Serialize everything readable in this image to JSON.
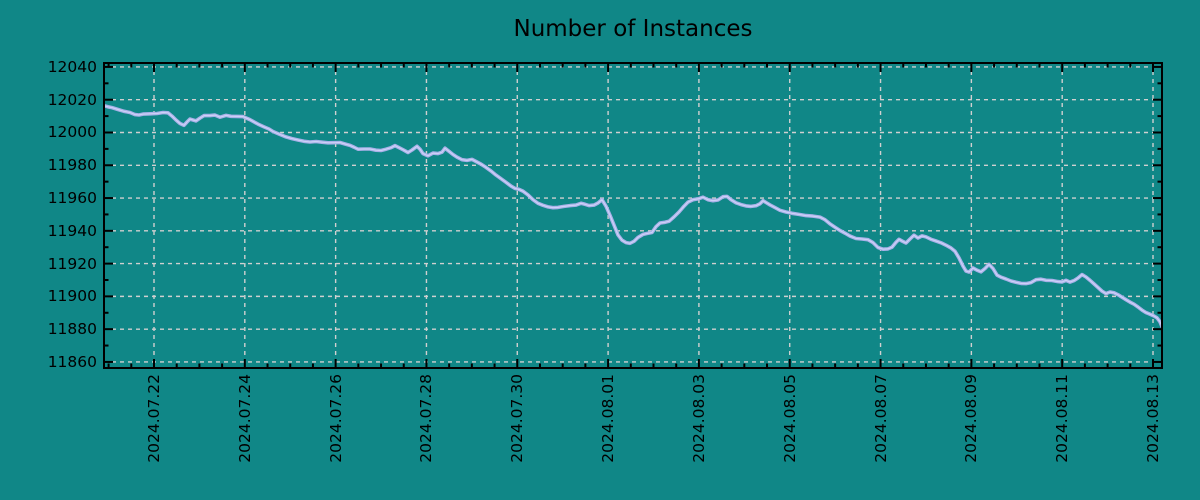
{
  "title": "Number of Instances",
  "colors": {
    "background": "#108787",
    "line": "#a9b1e9",
    "line_core": "#cdd2f6",
    "grid": "#d0d0d0",
    "axis": "#000000",
    "text": "#000000"
  },
  "chart_data": {
    "type": "line",
    "title": "Number of Instances",
    "xlabel": "",
    "ylabel": "",
    "legend": false,
    "grid": true,
    "x_unit": "days since 2024-07-22",
    "xlim": [
      -1.101,
      22.198
    ],
    "ylim": [
      11856.3,
      12042.4
    ],
    "x_tick_values": [
      0,
      2,
      4,
      6,
      8,
      10,
      12,
      14,
      16,
      18,
      20,
      22
    ],
    "x_tick_labels": [
      "2024.07.22",
      "2024.07.24",
      "2024.07.26",
      "2024.07.28",
      "2024.07.30",
      "2024.08.01",
      "2024.08.03",
      "2024.08.05",
      "2024.08.07",
      "2024.08.09",
      "2024.08.11",
      "2024.08.13"
    ],
    "x_minor_step": 0.5,
    "y_tick_values": [
      11860,
      11880,
      11900,
      11920,
      11940,
      11960,
      11980,
      12000,
      12020,
      12040
    ],
    "y_tick_labels": [
      "11860",
      "11880",
      "11900",
      "11920",
      "11940",
      "11960",
      "11980",
      "12000",
      "12020",
      "12040"
    ],
    "y_minor_values": [
      11870,
      11890,
      11910,
      11930,
      11950,
      11970,
      11990,
      12010,
      12030
    ],
    "series": [
      {
        "name": "instances",
        "points": [
          [
            -1.101,
            12016.3
          ],
          [
            -1.013,
            12015.7
          ],
          [
            -0.925,
            12015.2
          ],
          [
            -0.793,
            12014.0
          ],
          [
            -0.661,
            12012.9
          ],
          [
            -0.529,
            12012.2
          ],
          [
            -0.418,
            12010.9
          ],
          [
            -0.33,
            12010.7
          ],
          [
            -0.242,
            12011.2
          ],
          [
            -0.088,
            12011.4
          ],
          [
            0.066,
            12011.6
          ],
          [
            0.198,
            12012.2
          ],
          [
            0.308,
            12012.0
          ],
          [
            0.396,
            12010.0
          ],
          [
            0.484,
            12007.6
          ],
          [
            0.573,
            12005.5
          ],
          [
            0.661,
            12004.4
          ],
          [
            0.727,
            12006.4
          ],
          [
            0.793,
            12008.2
          ],
          [
            0.859,
            12007.6
          ],
          [
            0.925,
            12007.1
          ],
          [
            1.013,
            12008.8
          ],
          [
            1.101,
            12010.3
          ],
          [
            1.233,
            12010.3
          ],
          [
            1.343,
            12010.6
          ],
          [
            1.453,
            12009.3
          ],
          [
            1.586,
            12010.4
          ],
          [
            1.696,
            12009.9
          ],
          [
            1.828,
            12009.8
          ],
          [
            1.96,
            12009.7
          ],
          [
            2.114,
            12007.8
          ],
          [
            2.29,
            12005.1
          ],
          [
            2.422,
            12003.4
          ],
          [
            2.532,
            12002.1
          ],
          [
            2.62,
            12000.6
          ],
          [
            2.775,
            11998.8
          ],
          [
            2.907,
            11997.3
          ],
          [
            3.039,
            11996.3
          ],
          [
            3.171,
            11995.4
          ],
          [
            3.303,
            11994.6
          ],
          [
            3.435,
            11994.2
          ],
          [
            3.567,
            11994.5
          ],
          [
            3.699,
            11994.1
          ],
          [
            3.832,
            11993.7
          ],
          [
            3.964,
            11993.8
          ],
          [
            4.096,
            11993.9
          ],
          [
            4.206,
            11993.0
          ],
          [
            4.316,
            11992.1
          ],
          [
            4.404,
            11991.0
          ],
          [
            4.492,
            11989.8
          ],
          [
            4.624,
            11989.9
          ],
          [
            4.756,
            11989.9
          ],
          [
            4.888,
            11989.2
          ],
          [
            4.999,
            11989.0
          ],
          [
            5.109,
            11989.8
          ],
          [
            5.219,
            11990.7
          ],
          [
            5.307,
            11992.0
          ],
          [
            5.395,
            11990.8
          ],
          [
            5.483,
            11989.5
          ],
          [
            5.593,
            11987.8
          ],
          [
            5.681,
            11989.3
          ],
          [
            5.791,
            11991.6
          ],
          [
            5.857,
            11989.8
          ],
          [
            5.923,
            11987.1
          ],
          [
            6.034,
            11985.8
          ],
          [
            6.144,
            11987.4
          ],
          [
            6.254,
            11987.1
          ],
          [
            6.342,
            11988.0
          ],
          [
            6.408,
            11990.4
          ],
          [
            6.496,
            11988.5
          ],
          [
            6.584,
            11986.6
          ],
          [
            6.672,
            11985.0
          ],
          [
            6.783,
            11983.4
          ],
          [
            6.893,
            11983.0
          ],
          [
            7.003,
            11983.6
          ],
          [
            7.113,
            11982.0
          ],
          [
            7.201,
            11980.7
          ],
          [
            7.311,
            11978.7
          ],
          [
            7.421,
            11976.5
          ],
          [
            7.531,
            11974.0
          ],
          [
            7.641,
            11971.8
          ],
          [
            7.751,
            11969.6
          ],
          [
            7.861,
            11967.3
          ],
          [
            7.949,
            11965.9
          ],
          [
            8.038,
            11965.3
          ],
          [
            8.126,
            11964.2
          ],
          [
            8.236,
            11961.9
          ],
          [
            8.346,
            11959.0
          ],
          [
            8.456,
            11956.8
          ],
          [
            8.566,
            11955.6
          ],
          [
            8.676,
            11954.6
          ],
          [
            8.786,
            11954.1
          ],
          [
            8.896,
            11954.3
          ],
          [
            9.028,
            11954.9
          ],
          [
            9.161,
            11955.4
          ],
          [
            9.293,
            11955.7
          ],
          [
            9.403,
            11956.8
          ],
          [
            9.491,
            11956.2
          ],
          [
            9.579,
            11955.4
          ],
          [
            9.689,
            11955.7
          ],
          [
            9.777,
            11957.0
          ],
          [
            9.865,
            11959.0
          ],
          [
            9.953,
            11955.0
          ],
          [
            10.041,
            11949.5
          ],
          [
            10.129,
            11943.5
          ],
          [
            10.218,
            11937.5
          ],
          [
            10.306,
            11934.3
          ],
          [
            10.394,
            11932.8
          ],
          [
            10.482,
            11932.4
          ],
          [
            10.57,
            11933.6
          ],
          [
            10.658,
            11936.0
          ],
          [
            10.768,
            11937.8
          ],
          [
            10.878,
            11938.5
          ],
          [
            10.966,
            11939.0
          ],
          [
            11.054,
            11942.5
          ],
          [
            11.142,
            11944.8
          ],
          [
            11.253,
            11945.2
          ],
          [
            11.341,
            11945.8
          ],
          [
            11.451,
            11948.5
          ],
          [
            11.561,
            11951.5
          ],
          [
            11.671,
            11955.0
          ],
          [
            11.759,
            11957.5
          ],
          [
            11.869,
            11959.0
          ],
          [
            11.979,
            11959.5
          ],
          [
            12.089,
            11960.5
          ],
          [
            12.199,
            11959.0
          ],
          [
            12.31,
            11958.4
          ],
          [
            12.42,
            11958.8
          ],
          [
            12.53,
            11960.8
          ],
          [
            12.618,
            11961.0
          ],
          [
            12.706,
            11959.0
          ],
          [
            12.816,
            11957.1
          ],
          [
            12.926,
            11956.0
          ],
          [
            13.036,
            11955.2
          ],
          [
            13.146,
            11954.9
          ],
          [
            13.257,
            11955.3
          ],
          [
            13.345,
            11956.5
          ],
          [
            13.411,
            11958.4
          ],
          [
            13.477,
            11957.3
          ],
          [
            13.565,
            11955.8
          ],
          [
            13.675,
            11954.2
          ],
          [
            13.785,
            11952.5
          ],
          [
            13.917,
            11951.5
          ],
          [
            14.049,
            11950.7
          ],
          [
            14.203,
            11950.0
          ],
          [
            14.358,
            11949.3
          ],
          [
            14.512,
            11949.0
          ],
          [
            14.666,
            11948.4
          ],
          [
            14.776,
            11946.8
          ],
          [
            14.886,
            11944.2
          ],
          [
            14.996,
            11942.2
          ],
          [
            15.106,
            11940.2
          ],
          [
            15.216,
            11938.6
          ],
          [
            15.327,
            11936.8
          ],
          [
            15.459,
            11935.3
          ],
          [
            15.591,
            11935.0
          ],
          [
            15.723,
            11934.6
          ],
          [
            15.833,
            11932.8
          ],
          [
            15.943,
            11929.8
          ],
          [
            16.053,
            11928.8
          ],
          [
            16.163,
            11929.0
          ],
          [
            16.252,
            11930.0
          ],
          [
            16.34,
            11933.0
          ],
          [
            16.406,
            11934.8
          ],
          [
            16.472,
            11933.8
          ],
          [
            16.56,
            11932.6
          ],
          [
            16.648,
            11935.0
          ],
          [
            16.736,
            11937.3
          ],
          [
            16.824,
            11935.6
          ],
          [
            16.912,
            11936.9
          ],
          [
            17.001,
            11936.3
          ],
          [
            17.111,
            11934.8
          ],
          [
            17.221,
            11933.8
          ],
          [
            17.331,
            11932.7
          ],
          [
            17.441,
            11931.2
          ],
          [
            17.551,
            11929.5
          ],
          [
            17.639,
            11927.5
          ],
          [
            17.727,
            11923.5
          ],
          [
            17.815,
            11918.5
          ],
          [
            17.881,
            11915.4
          ],
          [
            17.947,
            11914.8
          ],
          [
            18.036,
            11917.3
          ],
          [
            18.124,
            11916.0
          ],
          [
            18.212,
            11915.0
          ],
          [
            18.3,
            11917.0
          ],
          [
            18.388,
            11919.5
          ],
          [
            18.476,
            11917.0
          ],
          [
            18.564,
            11913.0
          ],
          [
            18.652,
            11911.7
          ],
          [
            18.762,
            11910.6
          ],
          [
            18.873,
            11909.4
          ],
          [
            18.983,
            11908.6
          ],
          [
            19.093,
            11907.9
          ],
          [
            19.203,
            11907.8
          ],
          [
            19.313,
            11908.4
          ],
          [
            19.423,
            11910.2
          ],
          [
            19.533,
            11910.5
          ],
          [
            19.643,
            11909.8
          ],
          [
            19.776,
            11909.7
          ],
          [
            19.908,
            11909.0
          ],
          [
            19.996,
            11908.8
          ],
          [
            20.084,
            11909.8
          ],
          [
            20.172,
            11908.7
          ],
          [
            20.26,
            11909.6
          ],
          [
            20.348,
            11911.2
          ],
          [
            20.436,
            11913.3
          ],
          [
            20.524,
            11911.8
          ],
          [
            20.612,
            11909.8
          ],
          [
            20.7,
            11907.6
          ],
          [
            20.788,
            11905.4
          ],
          [
            20.876,
            11903.2
          ],
          [
            20.964,
            11901.7
          ],
          [
            21.053,
            11902.7
          ],
          [
            21.141,
            11902.2
          ],
          [
            21.229,
            11901.0
          ],
          [
            21.317,
            11899.5
          ],
          [
            21.405,
            11898.0
          ],
          [
            21.493,
            11896.5
          ],
          [
            21.581,
            11895.2
          ],
          [
            21.669,
            11893.5
          ],
          [
            21.757,
            11891.6
          ],
          [
            21.845,
            11890.1
          ],
          [
            21.933,
            11889.1
          ],
          [
            22.021,
            11888.0
          ],
          [
            22.087,
            11886.9
          ],
          [
            22.153,
            11884.5
          ],
          [
            22.198,
            11881.5
          ]
        ]
      }
    ]
  }
}
